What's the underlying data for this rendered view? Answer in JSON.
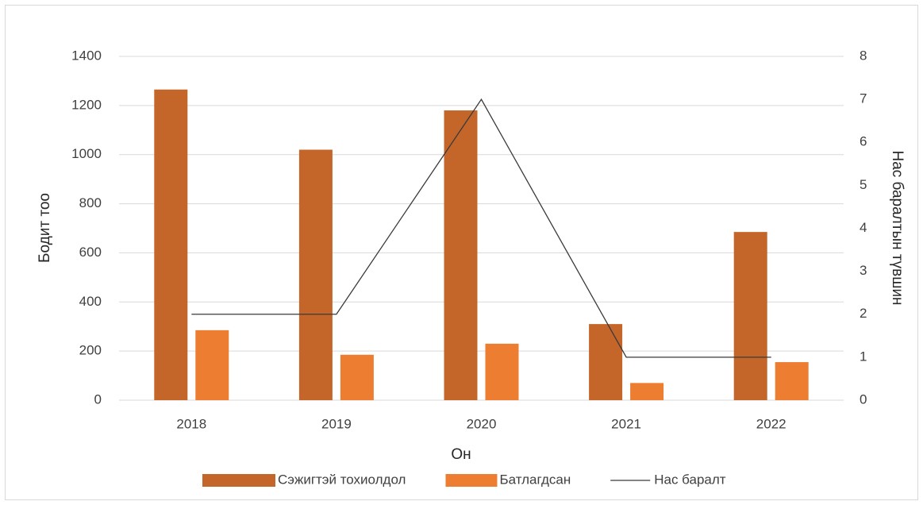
{
  "chart_data": {
    "type": "bar",
    "categories": [
      "2018",
      "2019",
      "2020",
      "2021",
      "2022"
    ],
    "series": [
      {
        "name": "Сэжигтэй тохиолдол",
        "type": "bar",
        "color": "#c4652a",
        "values": [
          1265,
          1020,
          1180,
          310,
          685
        ]
      },
      {
        "name": "Батлагдсан",
        "type": "bar",
        "color": "#ed7d31",
        "values": [
          285,
          185,
          230,
          70,
          155
        ]
      },
      {
        "name": "Нас баралт",
        "type": "line",
        "axis": "y2",
        "color": "#3a3a3a",
        "values": [
          2,
          2,
          7,
          1,
          1
        ]
      }
    ],
    "xlabel": "Он",
    "ylabel": "Бодит тоо",
    "y2label": "Нас баралтын түвшин",
    "ylim": [
      0,
      1400
    ],
    "yticks": [
      0,
      200,
      400,
      600,
      800,
      1000,
      1200,
      1400
    ],
    "y2lim": [
      0,
      8
    ],
    "y2ticks": [
      0,
      1,
      2,
      3,
      4,
      5,
      6,
      7,
      8
    ],
    "grid": true,
    "legend": "bottom"
  }
}
